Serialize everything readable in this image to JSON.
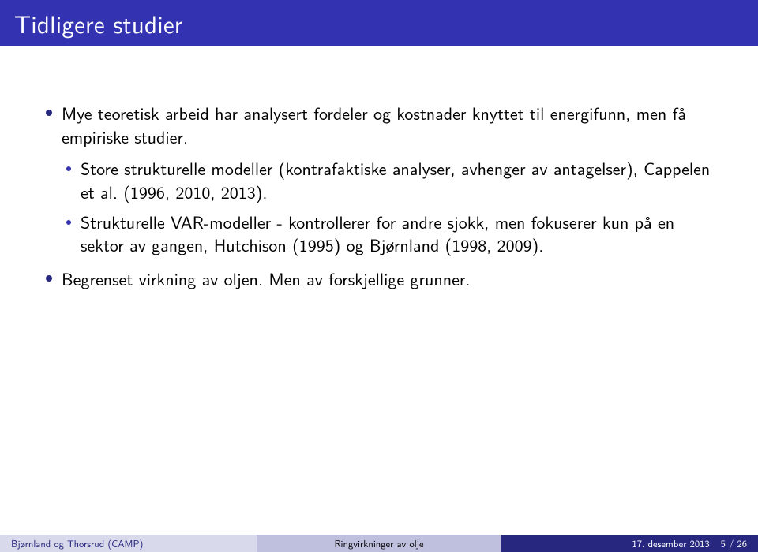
{
  "colors": {
    "title_band_bg": "#3333b2",
    "title_text": "#ffffff",
    "body_text": "#000000",
    "outer_bullet": "#27277f",
    "inner_bullet": "#3333b2",
    "footer_bg": "#d9d9ec",
    "footer_center_bg": "#bfbfde",
    "footer_right_bg": "#27277f",
    "footer_left_text": "#27277f",
    "footer_center_text": "#000000",
    "footer_right_text": "#ffffff"
  },
  "title": "Tidligere studier",
  "bullets": [
    {
      "text": "Mye teoretisk arbeid har analysert fordeler og kostnader knyttet til energifunn, men få empiriske studier.",
      "children": [
        "Store strukturelle modeller (kontrafaktiske analyser, avhenger av antagelser), Cappelen et al. (1996, 2010, 2013).",
        "Strukturelle VAR-modeller - kontrollerer for andre sjokk, men fokuserer kun på en sektor av gangen, Hutchison (1995) og Bjørnland (1998, 2009)."
      ]
    },
    {
      "text": "Begrenset virkning av oljen. Men av forskjellige grunner.",
      "children": []
    }
  ],
  "footer": {
    "left": "Bjørnland og Thorsrud (CAMP)",
    "center": "Ringvirkninger av olje",
    "date": "17. desember 2013",
    "page_current": 5,
    "page_total": 26
  }
}
